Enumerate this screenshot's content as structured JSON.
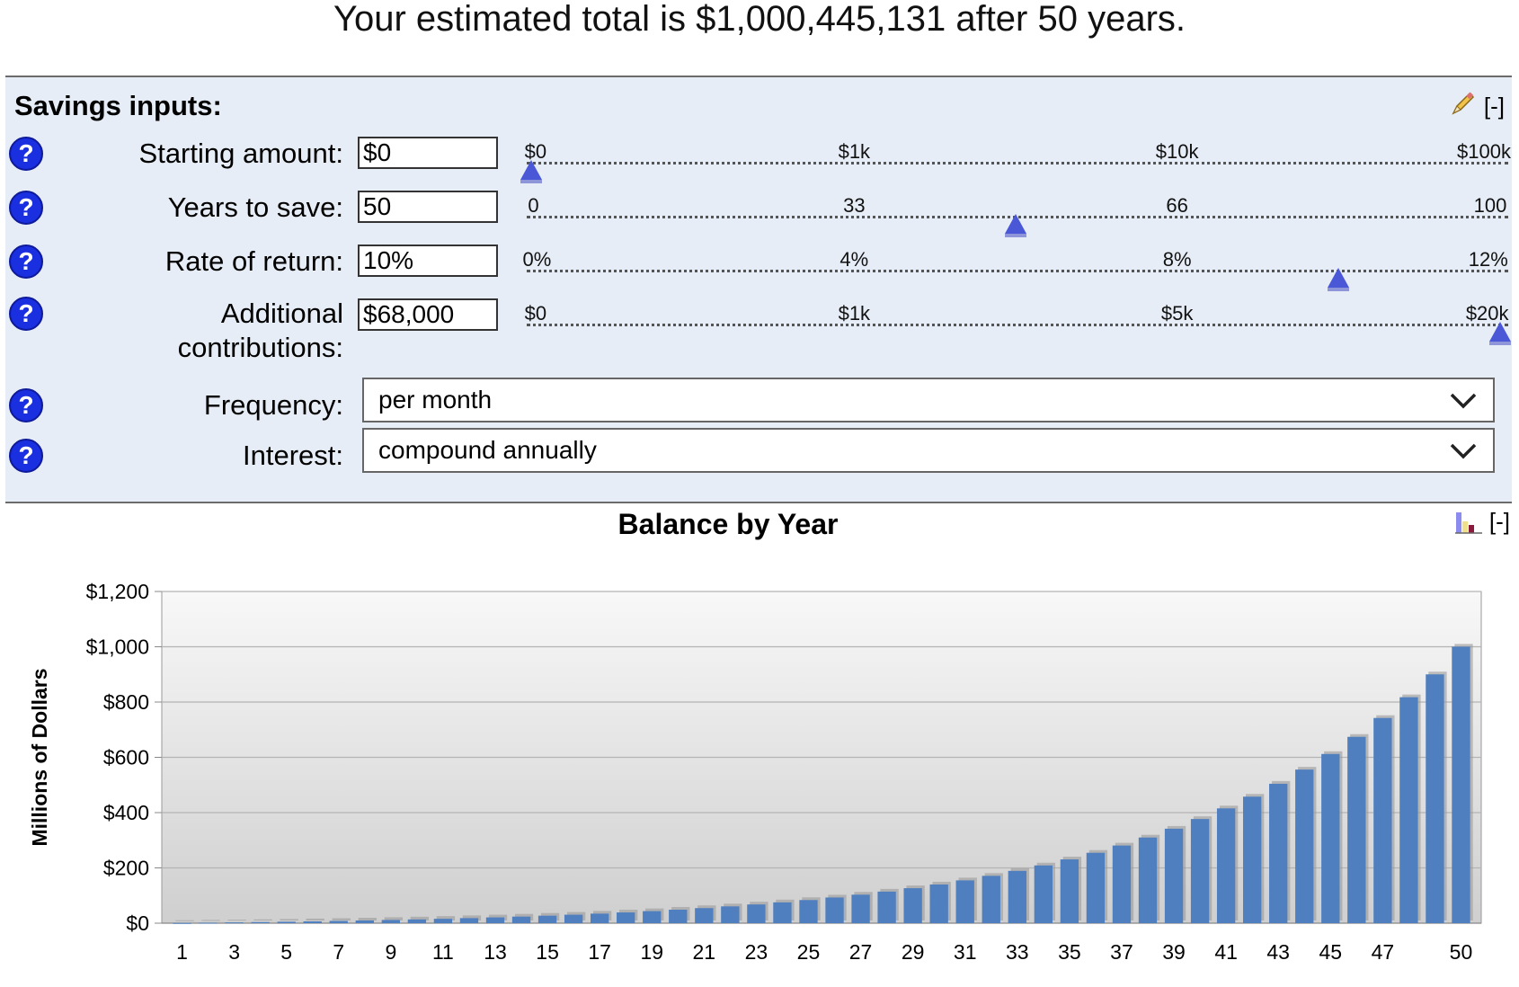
{
  "summary": "Your estimated total is $1,000,445,131 after 50 years.",
  "panel": {
    "title": "Savings inputs:",
    "collapse_label": "[-]",
    "edit_icon": "pencil-icon"
  },
  "inputs": {
    "starting_amount": {
      "label": "Starting amount:",
      "value": "$0",
      "ticks": [
        "$0",
        "$1k",
        "$10k",
        "$100k"
      ],
      "slider_fraction": 0.0
    },
    "years_to_save": {
      "label": "Years to save:",
      "value": "50",
      "ticks": [
        "0",
        "33",
        "66",
        "100"
      ],
      "slider_fraction": 0.5
    },
    "rate_of_return": {
      "label": "Rate of return:",
      "value": "10%",
      "ticks": [
        "0%",
        "4%",
        "8%",
        "12%"
      ],
      "slider_fraction": 0.833
    },
    "additional_contributions": {
      "label_line1": "Additional",
      "label_line2": "contributions:",
      "value": "$68,000",
      "ticks": [
        "$0",
        "$1k",
        "$5k",
        "$20k"
      ],
      "slider_fraction": 1.0
    },
    "frequency": {
      "label": "Frequency:",
      "selected": "per month"
    },
    "interest": {
      "label": "Interest:",
      "selected": "compound annually"
    }
  },
  "help_symbol": "?",
  "chart_header": {
    "title": "Balance by Year",
    "collapse_label": "[-]",
    "icon": "bar-chart-icon"
  },
  "colors": {
    "bar": "#4f7fbf",
    "slider_thumb": "#4a58d8",
    "help": "#1a2fe0",
    "panel_bg": "#e6edf6"
  },
  "chart_data": {
    "type": "bar",
    "title": "Balance by Year",
    "xlabel": "",
    "ylabel": "Millions of Dollars",
    "ylim": [
      0,
      1200
    ],
    "y_ticks": [
      "$0",
      "$200",
      "$400",
      "$600",
      "$800",
      "$1,000",
      "$1,200"
    ],
    "x_tick_labels": [
      "1",
      "3",
      "5",
      "7",
      "9",
      "11",
      "13",
      "15",
      "17",
      "19",
      "21",
      "23",
      "25",
      "27",
      "29",
      "31",
      "33",
      "35",
      "37",
      "39",
      "41",
      "43",
      "45",
      "47",
      "50"
    ],
    "categories": [
      1,
      2,
      3,
      4,
      5,
      6,
      7,
      8,
      9,
      10,
      11,
      12,
      13,
      14,
      15,
      16,
      17,
      18,
      19,
      20,
      21,
      22,
      23,
      24,
      25,
      26,
      27,
      28,
      29,
      30,
      31,
      32,
      33,
      34,
      35,
      36,
      37,
      38,
      39,
      40,
      41,
      42,
      43,
      44,
      45,
      46,
      47,
      48,
      49,
      50
    ],
    "series": [
      {
        "values": [
          0.85,
          1.79,
          2.83,
          3.96,
          5.21,
          6.58,
          8.09,
          9.75,
          11.58,
          13.58,
          15.79,
          18.22,
          20.89,
          23.83,
          27.06,
          30.61,
          34.52,
          38.82,
          43.55,
          48.75,
          54.48,
          60.78,
          67.71,
          75.33,
          83.71,
          92.93,
          103.08,
          114.24,
          126.51,
          140.02,
          154.87,
          171.22,
          189.19,
          208.96,
          230.71,
          254.64,
          280.96,
          309.92,
          341.76,
          376.79,
          415.33,
          457.72,
          504.35,
          555.64,
          612.06,
          674.12,
          742.39,
          817.49,
          900.1,
          1000.45
        ]
      }
    ],
    "grid": true,
    "legend": "none"
  }
}
